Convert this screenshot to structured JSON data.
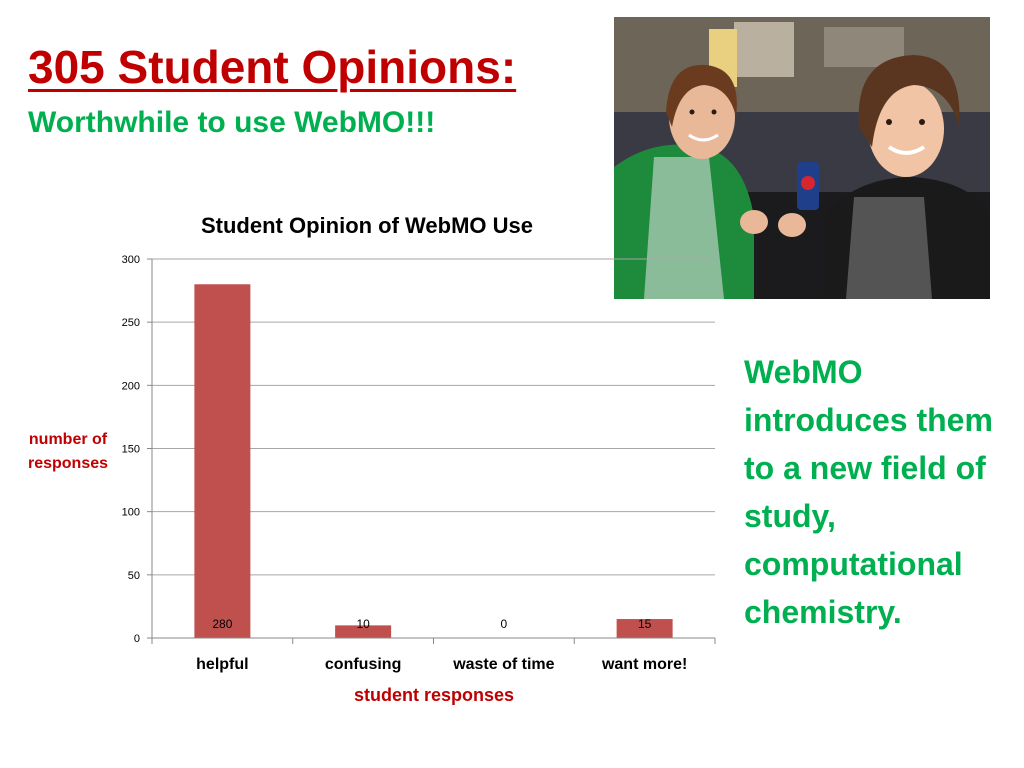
{
  "slide": {
    "title": "305 Student Opinions:",
    "subtitle": "Worthwhile to use WebMO!!!",
    "side_note": "WebMO introduces them to a new field of study, computational chemistry."
  },
  "colors": {
    "title": "#c00000",
    "subtitle": "#00b050",
    "bar": "#c0504d",
    "axis_label": "#c00000"
  },
  "photo": {
    "icon": "photo-two-students-thumbs-up"
  },
  "chart_data": {
    "type": "bar",
    "title": "Student Opinion of WebMO Use",
    "xlabel": "student responses",
    "ylabel": "number of responses",
    "categories": [
      "helpful",
      "confusing",
      "waste of time",
      "want more!"
    ],
    "values": [
      280,
      10,
      0,
      15
    ],
    "data_labels": [
      "280",
      "10",
      "0",
      "15"
    ],
    "ylim": [
      0,
      300
    ],
    "yticks": [
      0,
      50,
      100,
      150,
      200,
      250,
      300
    ],
    "grid": true,
    "legend": "none"
  }
}
